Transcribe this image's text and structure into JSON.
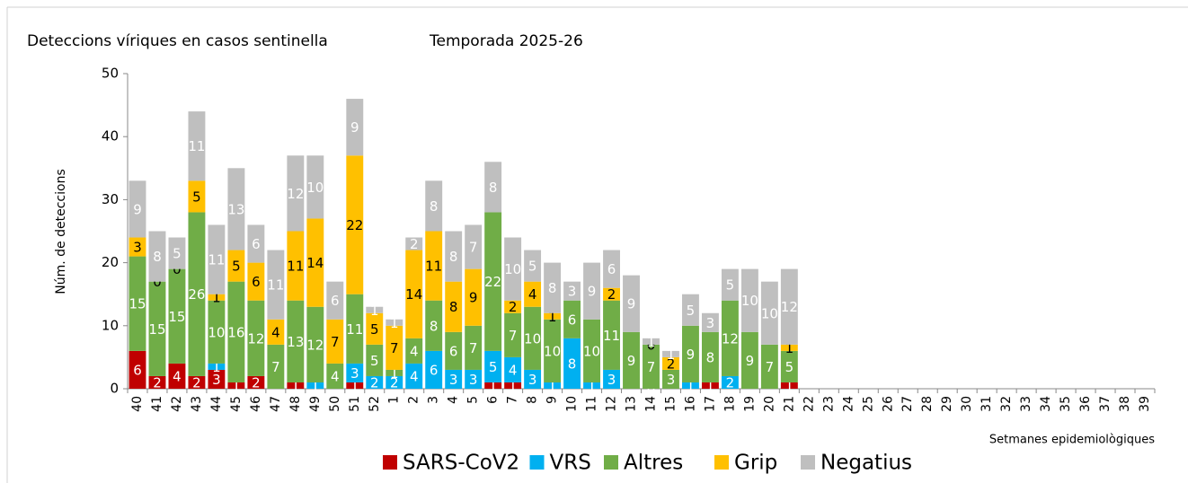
{
  "chart_data": {
    "type": "stacked_bar",
    "title": "Deteccions víriques en casos sentinella",
    "subtitle": "Temporada 2025-26",
    "y_label": "Núm. de deteccions",
    "x_label": "Setmanes epidemiològiques",
    "categories": [
      "40",
      "41",
      "42",
      "43",
      "44",
      "45",
      "46",
      "47",
      "48",
      "49",
      "50",
      "51",
      "52",
      "1",
      "2",
      "3",
      "4",
      "5",
      "6",
      "7",
      "8",
      "9",
      "10",
      "11",
      "12",
      "13",
      "14",
      "15",
      "16",
      "17",
      "18",
      "19",
      "20",
      "21",
      "22",
      "23",
      "24",
      "25",
      "26",
      "27",
      "28",
      "29",
      "30",
      "31",
      "32",
      "33",
      "34",
      "35",
      "36",
      "37",
      "38",
      "39"
    ],
    "ylim": [
      0,
      50
    ],
    "yticks": [
      0,
      10,
      20,
      30,
      40,
      50
    ],
    "grid": false,
    "legend": "bottom",
    "series": [
      {
        "name": "SARS-CoV2",
        "color": "#c00000",
        "label_color": "#ffffff",
        "values": [
          6,
          2,
          4,
          2,
          3,
          1,
          2,
          null,
          1,
          null,
          null,
          1,
          null,
          null,
          null,
          null,
          null,
          null,
          1,
          1,
          null,
          null,
          null,
          null,
          null,
          null,
          null,
          null,
          null,
          1,
          null,
          null,
          null,
          1,
          null,
          null,
          null,
          null,
          null,
          null,
          null,
          null,
          null,
          null,
          null,
          null,
          null,
          null,
          null,
          null,
          null,
          null
        ]
      },
      {
        "name": "VRS",
        "color": "#00b0f0",
        "label_color": "#ffffff",
        "values": [
          null,
          null,
          null,
          null,
          1,
          null,
          null,
          null,
          null,
          1,
          null,
          3,
          2,
          2,
          4,
          6,
          3,
          3,
          5,
          4,
          3,
          1,
          8,
          1,
          3,
          null,
          0,
          null,
          1,
          null,
          2,
          null,
          null,
          null,
          null,
          null,
          null,
          null,
          null,
          null,
          null,
          null,
          null,
          null,
          null,
          null,
          null,
          null,
          null,
          null,
          null,
          null
        ]
      },
      {
        "name": "Altres",
        "color": "#70ad47",
        "label_color": "#ffffff",
        "values": [
          15,
          15,
          15,
          26,
          10,
          16,
          12,
          7,
          13,
          12,
          4,
          11,
          5,
          1,
          4,
          8,
          6,
          7,
          22,
          7,
          10,
          10,
          6,
          10,
          11,
          9,
          7,
          3,
          9,
          8,
          12,
          9,
          7,
          5,
          null,
          null,
          null,
          null,
          null,
          null,
          null,
          null,
          null,
          null,
          null,
          null,
          null,
          null,
          null,
          null,
          null,
          null
        ]
      },
      {
        "name": "Grip",
        "color": "#ffc000",
        "label_color": "#000000",
        "values": [
          3,
          0,
          0,
          5,
          1,
          5,
          6,
          4,
          11,
          14,
          7,
          22,
          5,
          7,
          14,
          11,
          8,
          9,
          null,
          2,
          4,
          1,
          null,
          null,
          2,
          null,
          0,
          2,
          null,
          null,
          null,
          null,
          null,
          1,
          null,
          null,
          null,
          null,
          null,
          null,
          null,
          null,
          null,
          null,
          null,
          null,
          null,
          null,
          null,
          null,
          null,
          null
        ]
      },
      {
        "name": "Negatius",
        "color": "#bfbfbf",
        "label_color": "#ffffff",
        "values": [
          9,
          8,
          5,
          11,
          11,
          13,
          6,
          11,
          12,
          10,
          6,
          9,
          1,
          1,
          2,
          8,
          8,
          7,
          8,
          10,
          5,
          8,
          3,
          9,
          6,
          9,
          1,
          1,
          5,
          3,
          5,
          10,
          10,
          12,
          null,
          null,
          null,
          null,
          null,
          null,
          null,
          null,
          null,
          null,
          null,
          null,
          null,
          null,
          null,
          null,
          null,
          null
        ]
      }
    ]
  }
}
